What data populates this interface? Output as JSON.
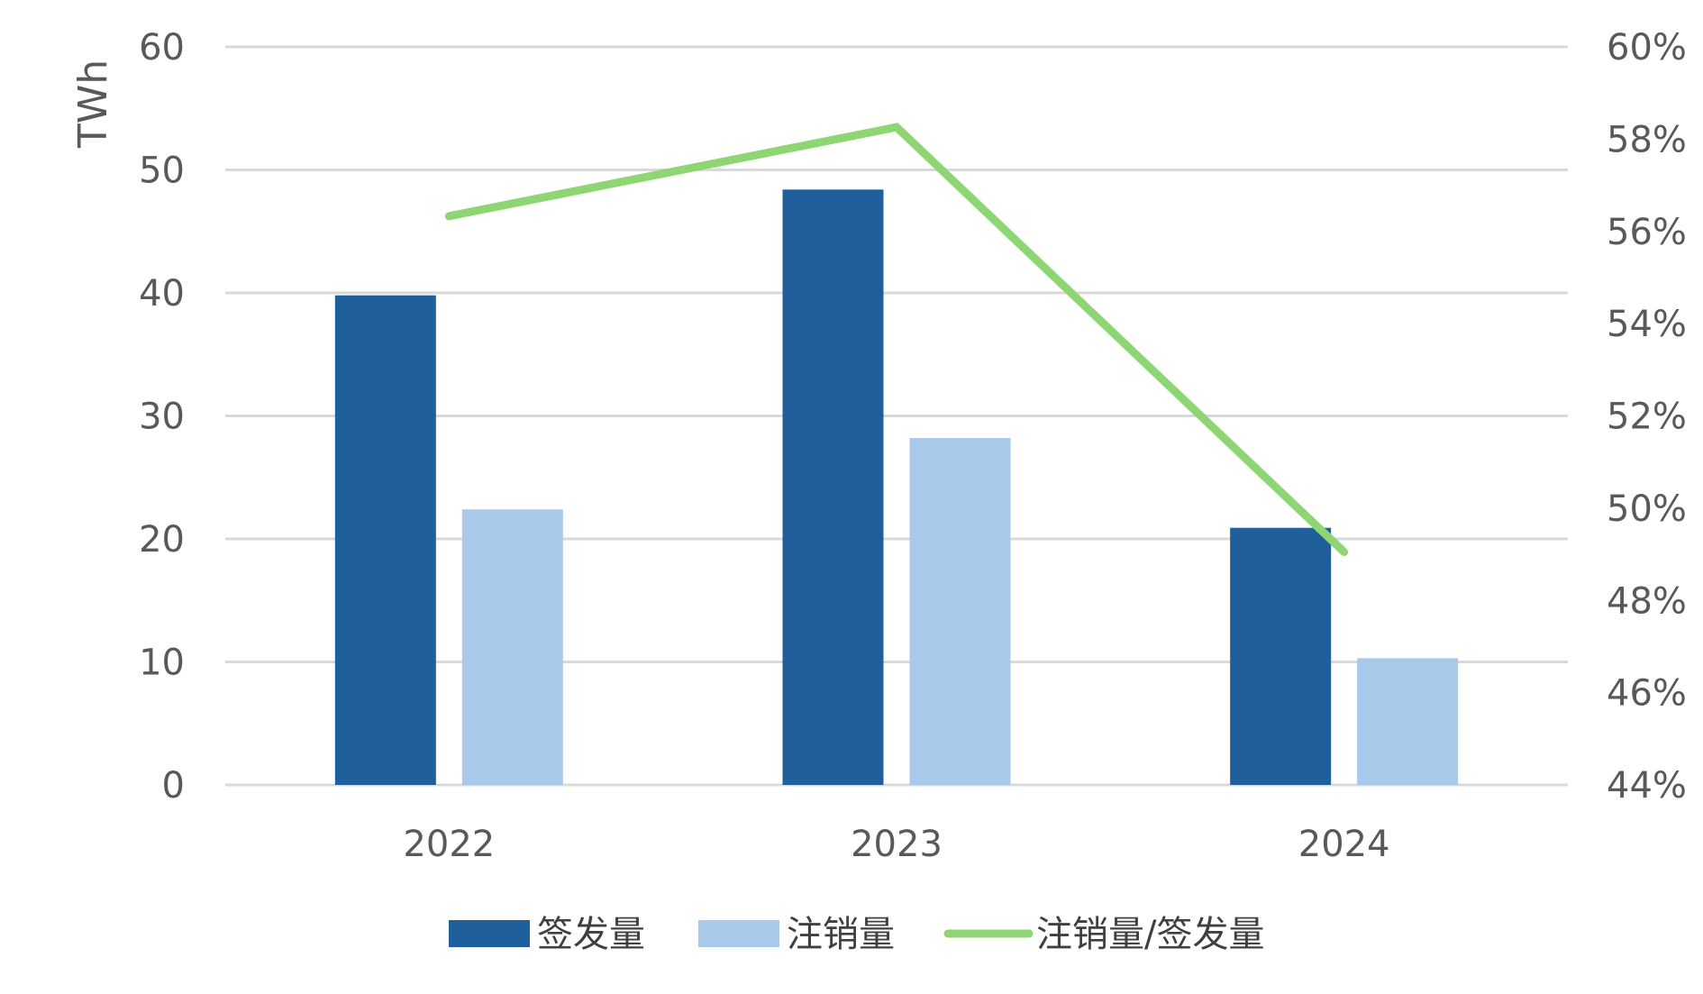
{
  "chart_data": {
    "type": "bar",
    "categories": [
      "2022",
      "2023",
      "2024"
    ],
    "series": [
      {
        "name": "签发量",
        "kind": "bar",
        "axis": "left",
        "color": "#1f5f9b",
        "values": [
          39.8,
          48.4,
          20.9
        ]
      },
      {
        "name": "注销量",
        "kind": "bar",
        "axis": "left",
        "color": "#a9c9ea",
        "values": [
          22.4,
          28.2,
          10.3
        ]
      },
      {
        "name": "注销量/签发量",
        "kind": "line",
        "axis": "right",
        "color": "#8dd673",
        "values": [
          0.5633,
          0.5826,
          0.4905
        ]
      }
    ],
    "ylabel": "TWh",
    "ylim": [
      0,
      60
    ],
    "yticks": [
      "0",
      "10",
      "20",
      "30",
      "40",
      "50",
      "60"
    ],
    "y2lim": [
      0.44,
      0.6
    ],
    "y2ticks": [
      "44%",
      "46%",
      "48%",
      "50%",
      "52%",
      "54%",
      "56%",
      "58%",
      "60%"
    ],
    "grid": true,
    "legend_position": "bottom"
  }
}
